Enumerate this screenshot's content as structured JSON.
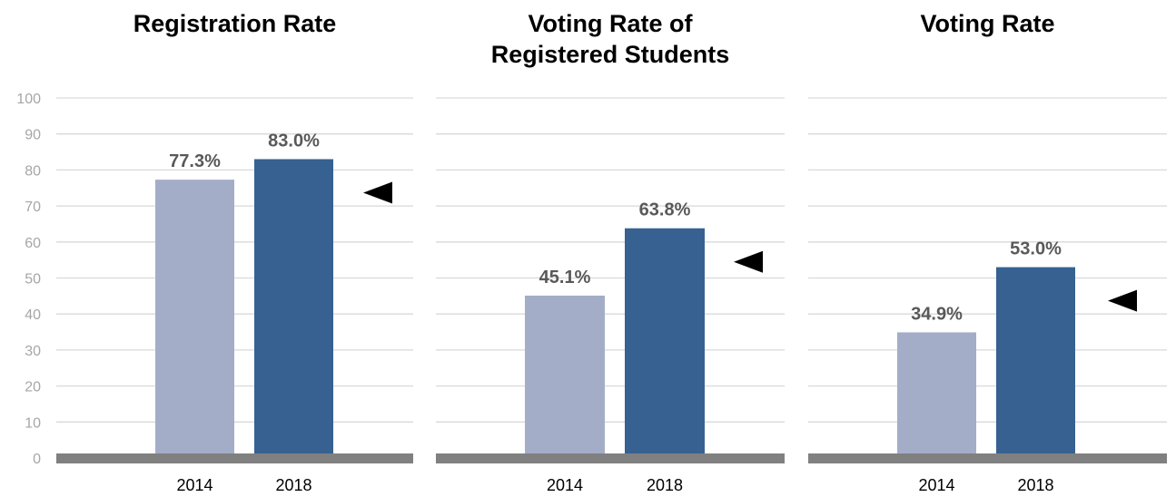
{
  "chart_data": [
    {
      "type": "bar",
      "title": "Registration Rate",
      "categories": [
        "2014",
        "2018"
      ],
      "values": [
        77.3,
        83.0
      ],
      "value_labels": [
        "77.3%",
        "83.0%"
      ],
      "ylim": [
        0,
        100
      ],
      "yticks": [
        "0",
        "10",
        "20",
        "30",
        "40",
        "50",
        "60",
        "70",
        "80",
        "90",
        "100"
      ],
      "grid": true
    },
    {
      "type": "bar",
      "title": "Voting Rate of Registered Students",
      "title_lines": [
        "Voting Rate of",
        "Registered Students"
      ],
      "categories": [
        "2014",
        "2018"
      ],
      "values": [
        45.1,
        63.8
      ],
      "value_labels": [
        "45.1%",
        "63.8%"
      ],
      "ylim": [
        0,
        100
      ],
      "grid": true
    },
    {
      "type": "bar",
      "title": "Voting Rate",
      "categories": [
        "2014",
        "2018"
      ],
      "values": [
        34.9,
        53.0
      ],
      "value_labels": [
        "34.9%",
        "53.0%"
      ],
      "ylim": [
        0,
        100
      ],
      "grid": true
    }
  ],
  "colors": {
    "bar_2014": "#a4adc8",
    "bar_2018": "#366191",
    "gridline": "#d9d9d9",
    "baseline": "#808080",
    "axis_text": "#a6a6a6",
    "value_label": "#595959",
    "category_text": "#000000",
    "title_text": "#000000",
    "marker": "#000000"
  },
  "marker_icon": "left-pointing-triangle-icon"
}
